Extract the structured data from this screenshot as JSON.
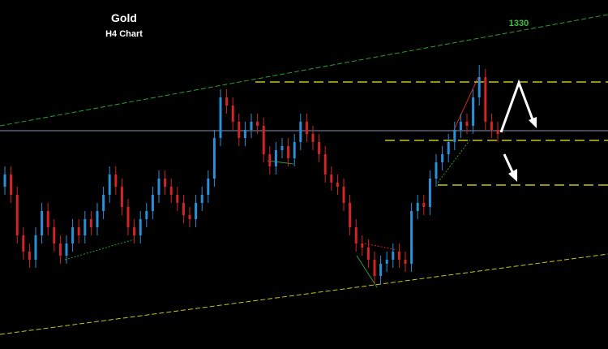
{
  "chart_data": {
    "type": "candlestick",
    "title": "Gold",
    "subtitle": "H4 Chart",
    "annotation": "1330",
    "ylim": [
      1297,
      1340
    ],
    "up_color": "#2b8fd8",
    "down_color": "#d42424",
    "open": [
      1317,
      1318.5,
      1316,
      1311,
      1309,
      1308,
      1311,
      1314,
      1312,
      1310,
      1308.5,
      1310,
      1312,
      1311,
      1313,
      1312,
      1314,
      1316,
      1318.5,
      1317,
      1314.5,
      1312,
      1311,
      1313,
      1314,
      1316,
      1318,
      1317,
      1316,
      1315,
      1313.5,
      1313,
      1315,
      1316,
      1318,
      1323,
      1328,
      1327,
      1325,
      1323,
      1324,
      1325,
      1324.5,
      1321,
      1319.5,
      1321.5,
      1322,
      1320.5,
      1322.5,
      1325,
      1323.5,
      1322.5,
      1321,
      1318.5,
      1317.5,
      1317,
      1315,
      1312,
      1310,
      1309.5,
      1308,
      1306,
      1307.5,
      1308,
      1309,
      1308,
      1307.5,
      1314,
      1315,
      1314.5,
      1318,
      1320,
      1321,
      1322.5,
      1324,
      1325,
      1324.5,
      1328,
      1330.5,
      1325,
      1324
    ],
    "high": [
      1319.5,
      1319.5,
      1317,
      1312,
      1310,
      1312,
      1315,
      1315,
      1313,
      1311,
      1311,
      1313,
      1313,
      1314,
      1314,
      1315,
      1317,
      1319.5,
      1319.5,
      1318,
      1315.5,
      1313,
      1314,
      1315,
      1317,
      1319,
      1319,
      1318,
      1317,
      1316,
      1314.5,
      1316,
      1317,
      1319,
      1324,
      1329,
      1329,
      1328,
      1326,
      1325,
      1326,
      1326,
      1325.5,
      1322,
      1322.5,
      1323,
      1323,
      1323.5,
      1326,
      1326,
      1324.5,
      1323.5,
      1322,
      1319.5,
      1318.5,
      1318,
      1316,
      1313,
      1311,
      1310.5,
      1309,
      1308.5,
      1309,
      1310,
      1310,
      1309,
      1315,
      1316,
      1316,
      1319,
      1321,
      1322,
      1323.5,
      1325,
      1326,
      1326,
      1329,
      1332,
      1331.5,
      1326,
      1325
    ],
    "low": [
      1316,
      1315,
      1310,
      1308,
      1307,
      1307,
      1310,
      1311,
      1309,
      1307.5,
      1307.5,
      1309,
      1310,
      1310,
      1311,
      1311,
      1313,
      1315,
      1316,
      1313.5,
      1311,
      1310,
      1310,
      1312,
      1313,
      1315,
      1316,
      1315,
      1314,
      1312.5,
      1312,
      1312,
      1314,
      1315,
      1317,
      1322,
      1326,
      1324,
      1322,
      1322,
      1323,
      1323.5,
      1320,
      1318.5,
      1318.5,
      1320.5,
      1319.5,
      1319.5,
      1321.5,
      1322.5,
      1321.5,
      1320,
      1317.5,
      1316.5,
      1316,
      1314,
      1311,
      1309,
      1308.5,
      1307,
      1305,
      1305,
      1306.5,
      1307,
      1307,
      1306.5,
      1306.5,
      1313,
      1313.5,
      1313.5,
      1317,
      1319,
      1320,
      1321.5,
      1323,
      1323.5,
      1323.5,
      1327,
      1324,
      1323,
      1322.5
    ],
    "close": [
      1318.5,
      1316,
      1311,
      1309,
      1308,
      1311,
      1314,
      1312,
      1310,
      1308.5,
      1310,
      1312,
      1311,
      1313,
      1312,
      1314,
      1316,
      1318.5,
      1317,
      1314.5,
      1312,
      1311,
      1313,
      1314,
      1316,
      1318,
      1317,
      1316,
      1315,
      1313.5,
      1313,
      1315,
      1316,
      1318,
      1323,
      1328,
      1327,
      1325,
      1323,
      1324,
      1325,
      1324.5,
      1321,
      1319.5,
      1321.5,
      1322,
      1320.5,
      1322.5,
      1325,
      1323.5,
      1322.5,
      1321,
      1318.5,
      1317.5,
      1317,
      1315,
      1312,
      1310,
      1309.5,
      1308,
      1306,
      1307.5,
      1308,
      1309,
      1308,
      1307.5,
      1314,
      1315,
      1314.5,
      1318,
      1320,
      1321,
      1322.5,
      1324,
      1325,
      1324.5,
      1328,
      1330.5,
      1325,
      1324,
      1323.5
    ],
    "levels": [
      {
        "value": 1329.9,
        "color": "#c8c41a",
        "style": "dashed"
      },
      {
        "value": 1323.9,
        "color": "#8a8fb0",
        "style": "solid"
      },
      {
        "value": 1322.7,
        "color": "#c8c41a",
        "style": "dashed"
      },
      {
        "value": 1317.2,
        "color": "#c8c41a",
        "style": "dashed"
      }
    ]
  }
}
